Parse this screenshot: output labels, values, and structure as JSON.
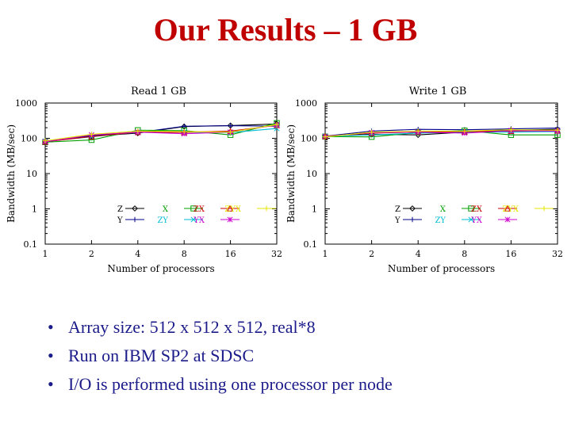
{
  "slide": {
    "title": "Our Results – 1 GB",
    "bullets": [
      "Array size: 512 x 512 x 512, real*8",
      "Run on IBM SP2 at SDSC",
      "I/O is performed using one processor per node"
    ]
  },
  "chart_data": [
    {
      "type": "line",
      "title": "Read 1 GB",
      "xlabel": "Number of processors",
      "ylabel": "Bandwidth (MB/sec)",
      "yscale": "log",
      "ylim": [
        0.1,
        1000
      ],
      "yticks": [
        "0.1",
        "1",
        "10",
        "100",
        "1000"
      ],
      "categories": [
        "1",
        "2",
        "4",
        "8",
        "16",
        "32"
      ],
      "legend_position": "lower-right",
      "series": [
        {
          "name": "Z",
          "color": "#000000",
          "marker": "diamond",
          "values": [
            80,
            115,
            140,
            215,
            230,
            255
          ]
        },
        {
          "name": "Y",
          "color": "#00008b",
          "marker": "plus",
          "values": [
            80,
            120,
            145,
            220,
            228,
            220
          ]
        },
        {
          "name": "X",
          "color": "#00a000",
          "marker": "square",
          "values": [
            78,
            90,
            170,
            165,
            125,
            270
          ]
        },
        {
          "name": "ZY",
          "color": "#00bcd4",
          "marker": "cross",
          "values": [
            82,
            110,
            150,
            150,
            145,
            190
          ]
        },
        {
          "name": "ZX",
          "color": "#cc0000",
          "marker": "triangle",
          "values": [
            80,
            112,
            150,
            148,
            160,
            235
          ]
        },
        {
          "name": "YX",
          "color": "#cc00cc",
          "marker": "star",
          "values": [
            80,
            125,
            150,
            135,
            150,
            240
          ]
        },
        {
          "name": "ZYX",
          "color": "#e6e600",
          "marker": "plus",
          "values": [
            85,
            130,
            160,
            155,
            150,
            245
          ]
        }
      ]
    },
    {
      "type": "line",
      "title": "Write 1 GB",
      "xlabel": "Number of processors",
      "ylabel": "Bandwidth (MB/sec)",
      "yscale": "log",
      "ylim": [
        0.1,
        1000
      ],
      "yticks": [
        "0.1",
        "1",
        "10",
        "100",
        "1000"
      ],
      "categories": [
        "1",
        "2",
        "4",
        "8",
        "16",
        "32"
      ],
      "legend_position": "lower-right",
      "series": [
        {
          "name": "Z",
          "color": "#000000",
          "marker": "diamond",
          "values": [
            115,
            130,
            125,
            150,
            170,
            180
          ]
        },
        {
          "name": "Y",
          "color": "#00008b",
          "marker": "plus",
          "values": [
            115,
            160,
            180,
            175,
            185,
            195
          ]
        },
        {
          "name": "X",
          "color": "#00a000",
          "marker": "square",
          "values": [
            112,
            110,
            145,
            165,
            125,
            125
          ]
        },
        {
          "name": "ZY",
          "color": "#00bcd4",
          "marker": "cross",
          "values": [
            115,
            125,
            140,
            150,
            150,
            155
          ]
        },
        {
          "name": "ZX",
          "color": "#cc0000",
          "marker": "triangle",
          "values": [
            115,
            140,
            150,
            155,
            160,
            165
          ]
        },
        {
          "name": "YX",
          "color": "#cc00cc",
          "marker": "star",
          "values": [
            113,
            145,
            150,
            140,
            165,
            160
          ]
        },
        {
          "name": "ZYX",
          "color": "#e6e600",
          "marker": "plus",
          "values": [
            110,
            150,
            160,
            160,
            175,
            170
          ]
        }
      ]
    }
  ]
}
